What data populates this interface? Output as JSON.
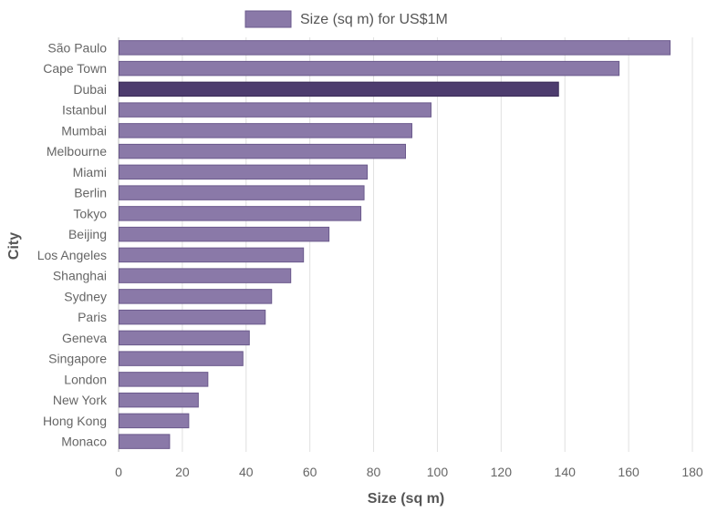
{
  "chart_data": {
    "type": "bar",
    "orientation": "horizontal",
    "categories": [
      "São Paulo",
      "Cape Town",
      "Dubai",
      "Istanbul",
      "Mumbai",
      "Melbourne",
      "Miami",
      "Berlin",
      "Tokyo",
      "Beijing",
      "Los Angeles",
      "Shanghai",
      "Sydney",
      "Paris",
      "Geneva",
      "Singapore",
      "London",
      "New York",
      "Hong Kong",
      "Monaco"
    ],
    "series": [
      {
        "name": "Size (sq m) for US$1M",
        "values": [
          173,
          157,
          138,
          98,
          92,
          90,
          78,
          77,
          76,
          66,
          58,
          54,
          48,
          46,
          41,
          39,
          28,
          25,
          22,
          16
        ]
      }
    ],
    "highlighted_category": "Dubai",
    "xlabel": "Size (sq m)",
    "ylabel": "City",
    "xlim": [
      0,
      180
    ],
    "xticks": [
      0,
      20,
      40,
      60,
      80,
      100,
      120,
      140,
      160,
      180
    ],
    "grid": "vertical",
    "legend_position": "top-center",
    "colors": {
      "bar_fill": "#8a79a8",
      "bar_stroke": "#6b5a8c",
      "highlight_fill": "#4d3c6e",
      "highlight_stroke": "#3a2b57",
      "grid": "#e0e0e0",
      "axis": "#bdbdbd"
    }
  }
}
